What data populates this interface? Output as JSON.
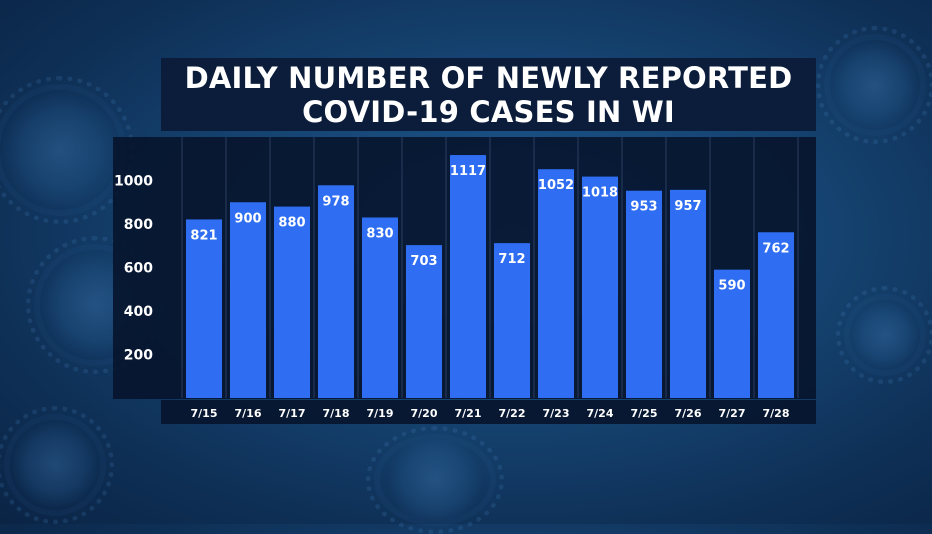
{
  "colors": {
    "bar": "#2f6ef2",
    "panel": "#0b1d3b",
    "grid": "#2a3d5e",
    "text": "#ffffff"
  },
  "chart_data": {
    "type": "bar",
    "title_line1": "DAILY NUMBER OF NEWLY REPORTED",
    "title_line2": "COVID-19 CASES IN WI",
    "xlabel": "",
    "ylabel": "",
    "categories": [
      "7/15",
      "7/16",
      "7/17",
      "7/18",
      "7/19",
      "7/20",
      "7/21",
      "7/22",
      "7/23",
      "7/24",
      "7/25",
      "7/26",
      "7/27",
      "7/28"
    ],
    "values": [
      821,
      900,
      880,
      978,
      830,
      703,
      1117,
      712,
      1052,
      1018,
      953,
      957,
      590,
      762
    ],
    "yticks": [
      200,
      400,
      600,
      800,
      1000
    ],
    "ylim": [
      0,
      1150
    ],
    "grid": true,
    "legend": false
  }
}
